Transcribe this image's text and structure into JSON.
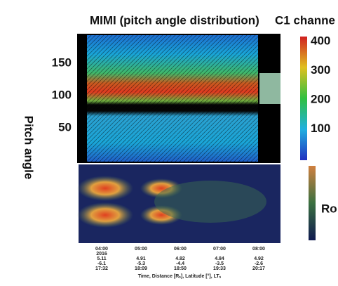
{
  "figure": {
    "title": "MIMI (pitch angle distribution)",
    "channel_label": "C1 channe",
    "y_axis_label": "Pitch angle",
    "y_ticks": [
      50,
      100,
      150
    ],
    "colorbar_ticks": [
      100,
      200,
      300,
      400
    ],
    "side_label": "Ro",
    "time_columns": [
      {
        "time": "04:00",
        "lines": [
          "2016",
          "5.11",
          "-6.1",
          "17:32"
        ]
      },
      {
        "time": "05:00",
        "lines": [
          "4.91",
          "-5.3",
          "18:09"
        ]
      },
      {
        "time": "06:00",
        "lines": [
          "4.82",
          "-4.4",
          "18:50"
        ]
      },
      {
        "time": "07:00",
        "lines": [
          "4.84",
          "-3.5",
          "19:33"
        ]
      },
      {
        "time": "08:00",
        "lines": [
          "4.92",
          "-2.6",
          "20:17"
        ]
      }
    ],
    "time_axis_label": "Time, Distance [Rₛ], Latitude [°], LTₛ"
  }
}
